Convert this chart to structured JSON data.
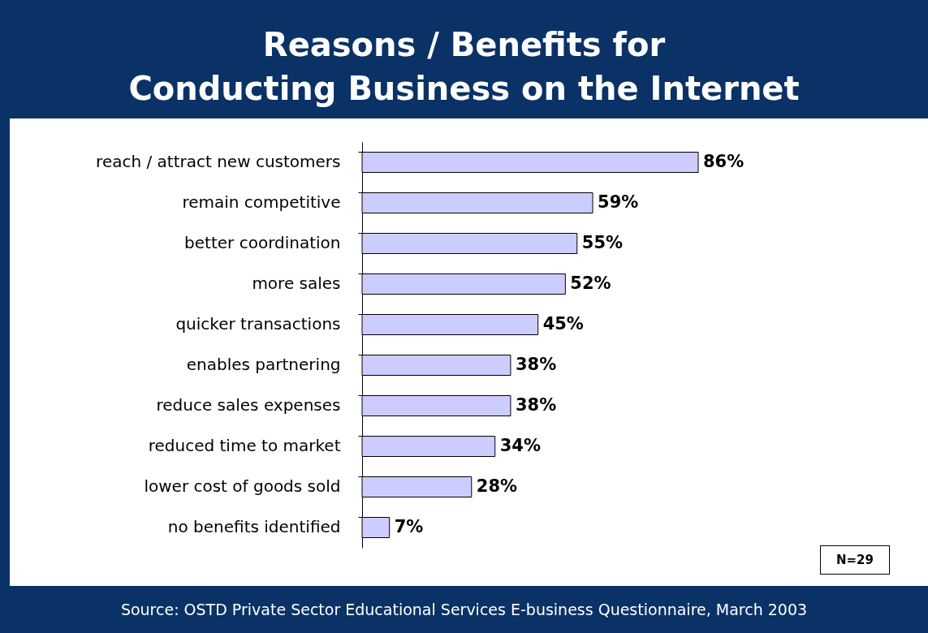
{
  "chart_data": {
    "type": "bar",
    "orientation": "horizontal",
    "title": "Reasons / Benefits for\nConducting Business on the Internet",
    "categories": [
      "reach / attract new customers",
      "remain competitive",
      "better coordination",
      "more sales",
      "quicker transactions",
      "enables partnering",
      "reduce sales expenses",
      "reduced time to market",
      "lower cost of goods sold",
      "no benefits identified"
    ],
    "values": [
      86,
      59,
      55,
      52,
      45,
      38,
      38,
      34,
      28,
      7
    ],
    "value_labels": [
      "86%",
      "59%",
      "55%",
      "52%",
      "45%",
      "38%",
      "38%",
      "34%",
      "28%",
      "7%"
    ],
    "color": "#ccccff",
    "annotations": [
      "Source:  OSTD Private Sector Educational Services E-business Questionnaire, March 2003",
      "N=29"
    ]
  }
}
